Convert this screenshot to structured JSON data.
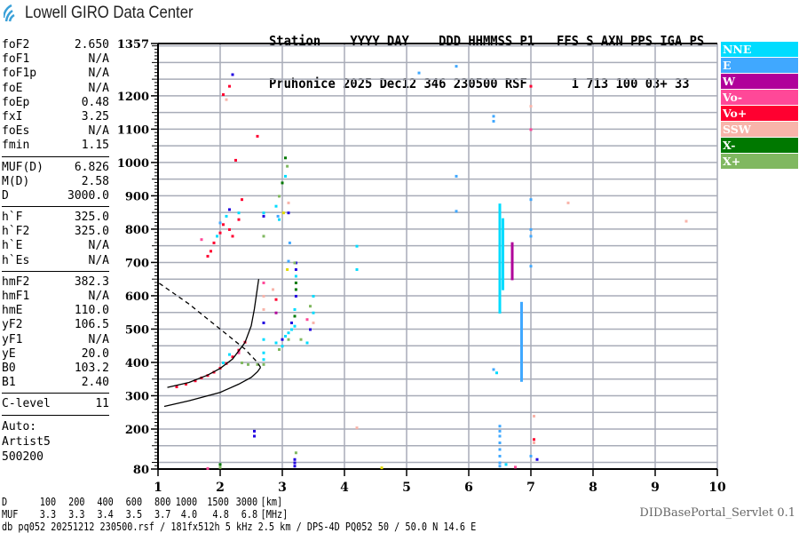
{
  "logo": {
    "text": "Lowell GIRO Data Center",
    "icon": "signal-waves-icon",
    "color": "#3aa0d8"
  },
  "header": {
    "line1": "Station    YYYY DAY    DDD HHMMSS P1   FFS S AXN PPS IGA PS",
    "line2": "Pruhonice 2025 Dec12 346 230500 RSF      1 713 100 03+ 33"
  },
  "params": {
    "group1": [
      {
        "label": "foF2",
        "value": "2.650"
      },
      {
        "label": "foF1",
        "value": "N/A"
      },
      {
        "label": "foF1p",
        "value": "N/A"
      },
      {
        "label": "foE",
        "value": "N/A"
      },
      {
        "label": "foEp",
        "value": "0.48"
      },
      {
        "label": "fxI",
        "value": "3.25"
      },
      {
        "label": "foEs",
        "value": "N/A"
      },
      {
        "label": "fmin",
        "value": "1.15"
      }
    ],
    "group2": [
      {
        "label": "MUF(D)",
        "value": "6.826"
      },
      {
        "label": "M(D)",
        "value": "2.58"
      },
      {
        "label": "D",
        "value": "3000.0"
      }
    ],
    "group3": [
      {
        "label": "h`F",
        "value": "325.0"
      },
      {
        "label": "h`F2",
        "value": "325.0"
      },
      {
        "label": "h`E",
        "value": "N/A"
      },
      {
        "label": "h`Es",
        "value": "N/A"
      }
    ],
    "group4": [
      {
        "label": "hmF2",
        "value": "382.3"
      },
      {
        "label": "hmF1",
        "value": "N/A"
      },
      {
        "label": "hmE",
        "value": "110.0"
      },
      {
        "label": "yF2",
        "value": "106.5"
      },
      {
        "label": "yF1",
        "value": "N/A"
      },
      {
        "label": "yE",
        "value": "20.0"
      },
      {
        "label": "B0",
        "value": "103.2"
      },
      {
        "label": "B1",
        "value": "2.40"
      }
    ],
    "clevel": {
      "label": "C-level",
      "value": "11"
    },
    "auto": [
      "Auto:",
      "Artist5",
      "500200"
    ]
  },
  "scale": {
    "d_label": "D",
    "d_values": [
      "100",
      "200",
      "400",
      "600",
      "800",
      "1000",
      "1500",
      "3000"
    ],
    "d_unit": "[km]",
    "muf_label": "MUF",
    "muf_values": [
      "3.3",
      "3.3",
      "3.4",
      "3.5",
      "3.7",
      "4.0",
      "4.8",
      "6.8"
    ],
    "muf_unit": "[MHz]"
  },
  "footer": "db pq052 20251212 230500.rsf / 181fx512h 5 kHz 2.5 km / DPS-4D PQ052 50 / 50.0 N 14.6 E",
  "servlet": "DIDBasePortal_Servlet 0.1",
  "legend": [
    {
      "label": "NNE",
      "color": "#00dcff"
    },
    {
      "label": "E",
      "color": "#40a8ff"
    },
    {
      "label": "W",
      "color": "#b0009a"
    },
    {
      "label": "Vo-",
      "color": "#ff4898"
    },
    {
      "label": "Vo+",
      "color": "#ff0030"
    },
    {
      "label": "SSW",
      "color": "#f8b4aa"
    },
    {
      "label": "X-",
      "color": "#007800"
    },
    {
      "label": "X+",
      "color": "#80b860"
    }
  ],
  "chart_data": {
    "type": "scatter",
    "xlim": [
      1,
      10
    ],
    "ylim": [
      80,
      1357
    ],
    "x_ticks": [
      "1",
      "2",
      "3",
      "4",
      "5",
      "6",
      "7",
      "8",
      "9",
      "10"
    ],
    "y_ticks": [
      "1357",
      "1200",
      "1100",
      "1000",
      "900",
      "800",
      "700",
      "600",
      "500",
      "400",
      "300",
      "200",
      "80"
    ],
    "grid": true,
    "legend_position": "right",
    "extra_colors": {
      "blue": "#2000e0",
      "yellow": "#e0d800"
    },
    "points": [
      [
        1.3,
        328,
        "Vo+"
      ],
      [
        1.45,
        336,
        "Vo+"
      ],
      [
        1.6,
        346,
        "Vo+"
      ],
      [
        1.7,
        355,
        "Vo+"
      ],
      [
        1.8,
        362,
        "Vo+"
      ],
      [
        1.9,
        372,
        "Vo+"
      ],
      [
        2.0,
        384,
        "Vo+"
      ],
      [
        2.1,
        398,
        "Vo+"
      ],
      [
        2.2,
        418,
        "Vo+"
      ],
      [
        2.3,
        438,
        "Vo+"
      ],
      [
        2.4,
        462,
        "Vo+"
      ],
      [
        2.05,
        400,
        "NNE"
      ],
      [
        2.15,
        425,
        "NNE"
      ],
      [
        2.3,
        430,
        "Vo-"
      ],
      [
        2.35,
        400,
        "X+"
      ],
      [
        2.45,
        395,
        "X+"
      ],
      [
        2.6,
        395,
        "X+"
      ],
      [
        1.8,
        720,
        "Vo+"
      ],
      [
        1.85,
        735,
        "Vo+"
      ],
      [
        1.9,
        760,
        "Vo+"
      ],
      [
        2.0,
        790,
        "Vo+"
      ],
      [
        2.05,
        815,
        "Vo+"
      ],
      [
        2.15,
        800,
        "Vo+"
      ],
      [
        2.2,
        780,
        "Vo+"
      ],
      [
        2.3,
        830,
        "Vo+"
      ],
      [
        2.35,
        890,
        "Vo+"
      ],
      [
        1.7,
        770,
        "Vo-"
      ],
      [
        1.95,
        780,
        "NNE"
      ],
      [
        2.1,
        840,
        "NNE"
      ],
      [
        2.3,
        850,
        "NNE"
      ],
      [
        2.0,
        820,
        "E"
      ],
      [
        2.15,
        860,
        "blue"
      ],
      [
        2.2,
        1265,
        "blue"
      ],
      [
        2.15,
        1230,
        "Vo+"
      ],
      [
        2.05,
        1205,
        "Vo+"
      ],
      [
        2.1,
        1190,
        "SSW"
      ],
      [
        2.6,
        1080,
        "Vo+"
      ],
      [
        2.25,
        1008,
        "Vo+"
      ],
      [
        2.7,
        850,
        "NNE"
      ],
      [
        2.7,
        840,
        "blue"
      ],
      [
        2.7,
        780,
        "X+"
      ],
      [
        2.7,
        640,
        "Vo-"
      ],
      [
        2.7,
        600,
        "SSW"
      ],
      [
        2.7,
        560,
        "SSW"
      ],
      [
        2.7,
        520,
        "blue"
      ],
      [
        2.7,
        470,
        "NNE"
      ],
      [
        2.7,
        430,
        "NNE"
      ],
      [
        2.7,
        410,
        "NNE"
      ],
      [
        2.7,
        395,
        "X+"
      ],
      [
        2.9,
        870,
        "NNE"
      ],
      [
        2.95,
        830,
        "NNE"
      ],
      [
        2.95,
        900,
        "X+"
      ],
      [
        3.0,
        940,
        "X-"
      ],
      [
        3.05,
        960,
        "NNE"
      ],
      [
        3.05,
        1015,
        "X-"
      ],
      [
        3.08,
        990,
        "X+"
      ],
      [
        3.1,
        880,
        "SSW"
      ],
      [
        3.1,
        850,
        "blue"
      ],
      [
        3.02,
        850,
        "yellow"
      ],
      [
        2.93,
        840,
        "E"
      ],
      [
        3.12,
        760,
        "E"
      ],
      [
        3.1,
        705,
        "E"
      ],
      [
        3.08,
        680,
        "yellow"
      ],
      [
        2.9,
        460,
        "NNE"
      ],
      [
        2.95,
        440,
        "X+"
      ],
      [
        3.0,
        450,
        "NNE"
      ],
      [
        3.0,
        470,
        "blue"
      ],
      [
        3.05,
        480,
        "NNE"
      ],
      [
        3.1,
        490,
        "NNE"
      ],
      [
        3.1,
        470,
        "X+"
      ],
      [
        3.15,
        500,
        "NNE"
      ],
      [
        3.15,
        520,
        "blue"
      ],
      [
        3.2,
        510,
        "NNE"
      ],
      [
        3.2,
        540,
        "X-"
      ],
      [
        3.2,
        560,
        "NNE"
      ],
      [
        3.22,
        600,
        "blue"
      ],
      [
        3.22,
        620,
        "X-"
      ],
      [
        3.22,
        640,
        "X-"
      ],
      [
        3.22,
        660,
        "NNE"
      ],
      [
        3.22,
        680,
        "blue"
      ],
      [
        3.22,
        700,
        "blue"
      ],
      [
        3.2,
        700,
        "X+"
      ],
      [
        2.9,
        590,
        "Vo+"
      ],
      [
        2.85,
        620,
        "SSW"
      ],
      [
        2.9,
        550,
        "W"
      ],
      [
        3.5,
        550,
        "NNE"
      ],
      [
        3.5,
        520,
        "SSW"
      ],
      [
        3.45,
        500,
        "blue"
      ],
      [
        3.45,
        570,
        "X+"
      ],
      [
        3.5,
        600,
        "NNE"
      ],
      [
        3.4,
        530,
        "Vo-"
      ],
      [
        3.3,
        470,
        "X+"
      ],
      [
        3.4,
        460,
        "NNE"
      ],
      [
        1.8,
        83,
        "Vo-"
      ],
      [
        2.0,
        86,
        "X+"
      ],
      [
        2.0,
        95,
        "X-"
      ],
      [
        2.55,
        180,
        "blue"
      ],
      [
        2.55,
        195,
        "blue"
      ],
      [
        3.2,
        90,
        "blue"
      ],
      [
        3.2,
        100,
        "blue"
      ],
      [
        3.2,
        110,
        "blue"
      ],
      [
        3.22,
        130,
        "X+"
      ],
      [
        4.6,
        85,
        "yellow"
      ],
      [
        4.2,
        750,
        "NNE"
      ],
      [
        4.2,
        680,
        "NNE"
      ],
      [
        4.2,
        205,
        "SSW"
      ],
      [
        5.2,
        1270,
        "E"
      ],
      [
        5.8,
        1290,
        "E"
      ],
      [
        5.8,
        960,
        "E"
      ],
      [
        5.8,
        855,
        "E"
      ],
      [
        6.4,
        1140,
        "E"
      ],
      [
        6.4,
        1125,
        "E"
      ],
      [
        6.4,
        380,
        "E"
      ],
      [
        6.45,
        370,
        "NNE"
      ],
      [
        7.0,
        1230,
        "Vo+"
      ],
      [
        7.0,
        1170,
        "SSW"
      ],
      [
        7.0,
        1100,
        "Vo-"
      ],
      [
        7.0,
        890,
        "E"
      ],
      [
        7.0,
        800,
        "E"
      ],
      [
        7.0,
        780,
        "E"
      ],
      [
        7.0,
        690,
        "E"
      ],
      [
        7.0,
        120,
        "E"
      ],
      [
        7.05,
        160,
        "SSW"
      ],
      [
        7.05,
        170,
        "Vo+"
      ],
      [
        7.05,
        240,
        "SSW"
      ],
      [
        7.1,
        110,
        "blue"
      ],
      [
        7.6,
        880,
        "SSW"
      ],
      [
        9.5,
        825,
        "SSW"
      ],
      [
        6.5,
        210,
        "E"
      ],
      [
        6.5,
        195,
        "E"
      ],
      [
        6.5,
        180,
        "E"
      ],
      [
        6.5,
        160,
        "E"
      ],
      [
        6.5,
        140,
        "E"
      ],
      [
        6.5,
        120,
        "E"
      ],
      [
        6.5,
        100,
        "E"
      ],
      [
        6.5,
        90,
        "E"
      ],
      [
        6.6,
        95,
        "NNE"
      ],
      [
        6.75,
        87,
        "Vo-"
      ]
    ],
    "runs": [
      {
        "f": 6.5,
        "h": [
          550,
          875
        ],
        "dir": "NNE"
      },
      {
        "f": 6.55,
        "h": [
          620,
          830
        ],
        "dir": "NNE"
      },
      {
        "f": 6.7,
        "h": [
          650,
          760
        ],
        "dir": "W"
      },
      {
        "f": 6.85,
        "h": [
          345,
          580
        ],
        "dir": "E"
      }
    ],
    "traces": {
      "virtual_height": [
        [
          1.15,
          325
        ],
        [
          1.5,
          340
        ],
        [
          1.8,
          362
        ],
        [
          2.0,
          382
        ],
        [
          2.2,
          410
        ],
        [
          2.4,
          460
        ],
        [
          2.5,
          510
        ],
        [
          2.55,
          560
        ],
        [
          2.62,
          650
        ]
      ],
      "profile": [
        [
          1.1,
          268
        ],
        [
          1.5,
          285
        ],
        [
          2.0,
          310
        ],
        [
          2.3,
          335
        ],
        [
          2.5,
          355
        ],
        [
          2.6,
          372
        ],
        [
          2.65,
          385
        ]
      ],
      "profile_topside": [
        [
          2.65,
          385
        ],
        [
          2.6,
          400
        ],
        [
          2.4,
          440
        ],
        [
          2.0,
          500
        ],
        [
          1.5,
          575
        ],
        [
          1.0,
          640
        ]
      ]
    }
  }
}
